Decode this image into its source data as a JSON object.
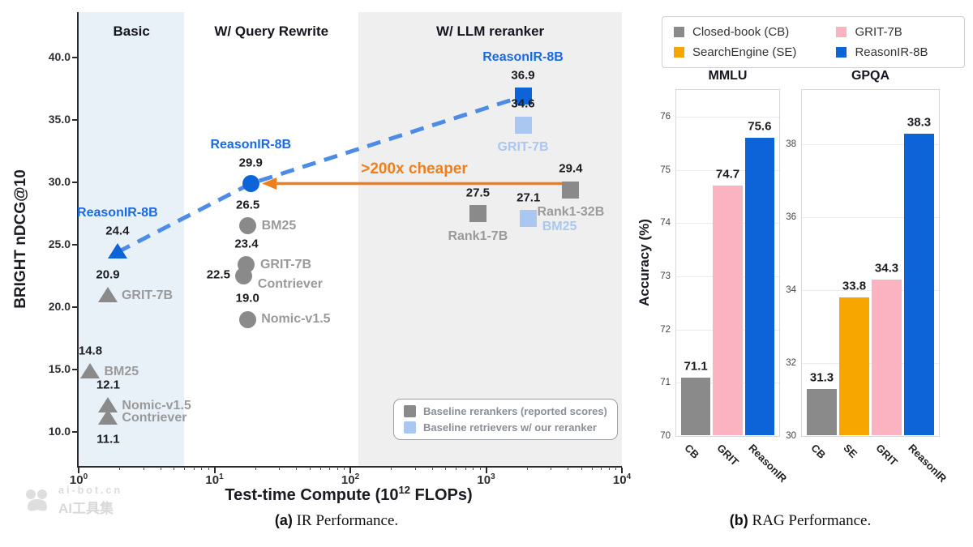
{
  "colors": {
    "blue": "#0d64d8",
    "blue_text": "#1a6ae0",
    "lightblue": "#a9c7f0",
    "gray": "#8a8a8a",
    "gray_text": "#9a9a9a",
    "dark_text": "#1b1b22",
    "pink": "#fbb3c1",
    "orange_bar": "#f7a600",
    "orange": "#ee7f1d",
    "trend": "#4d8ce6",
    "region_basic_bg": "#e9f1f8",
    "region_rewrite_bg": "#ffffff",
    "region_reranker_bg": "#efeff0"
  },
  "panel_a": {
    "caption_tag": "(a)",
    "caption_text": " IR Performance."
  },
  "panel_b": {
    "caption_tag": "(b)",
    "caption_text": " RAG Performance."
  },
  "watermark": {
    "site": "ai-bot.cn",
    "name": "AI工具集"
  },
  "chart_data": [
    {
      "id": "ir-performance",
      "type": "scatter",
      "x_axis": {
        "label_prefix": "Test-time Compute (10",
        "label_sup": "12",
        "label_suffix": " FLOPs)",
        "scale": "log",
        "ticks": [
          {
            "base": "10",
            "exp": "0"
          },
          {
            "base": "10",
            "exp": "1"
          },
          {
            "base": "10",
            "exp": "2"
          },
          {
            "base": "10",
            "exp": "3"
          },
          {
            "base": "10",
            "exp": "4"
          }
        ],
        "range_log10": [
          0,
          4
        ]
      },
      "y_axis": {
        "label": "BRIGHT nDCG@10",
        "ticks": [
          "10.0",
          "15.0",
          "20.0",
          "25.0",
          "30.0",
          "35.0",
          "40.0"
        ],
        "range": [
          7.4,
          43.6
        ]
      },
      "regions": [
        {
          "label": "Basic",
          "x_from": 1,
          "x_to": 6,
          "bg_key": "region_basic_bg"
        },
        {
          "label": "W/ Query Rewrite",
          "x_from": 6,
          "x_to": 115,
          "bg_key": "region_rewrite_bg"
        },
        {
          "label": "W/ LLM reranker",
          "x_from": 115,
          "x_to": 10000,
          "bg_key": "region_reranker_bg"
        }
      ],
      "points": [
        {
          "name": "BM25",
          "score": "14.8",
          "flops": 1.22,
          "marker": "triangle",
          "color": "gray",
          "value_pos": "above",
          "name_pos": "right",
          "name_color": "gray"
        },
        {
          "name": "Nomic-v1.5",
          "score": "12.1",
          "flops": 1.65,
          "marker": "triangle",
          "color": "gray",
          "value_pos": "above",
          "name_pos": "right",
          "name_color": "gray"
        },
        {
          "name": "Contriever",
          "score": "11.1",
          "flops": 1.65,
          "marker": "triangle",
          "color": "gray",
          "value_pos": "below",
          "name_pos": "right",
          "name_color": "gray"
        },
        {
          "name": "GRIT-7B",
          "score": "20.9",
          "flops": 1.64,
          "marker": "triangle",
          "color": "gray",
          "value_pos": "above",
          "name_pos": "right",
          "name_color": "gray"
        },
        {
          "name": "ReasonIR-8B",
          "score": "24.4",
          "flops": 1.93,
          "marker": "triangle",
          "color": "blue",
          "value_pos": "above",
          "name_pos": "above",
          "name_color": "blue"
        },
        {
          "name": "BM25",
          "score": "26.5",
          "flops": 17.6,
          "marker": "circle",
          "color": "gray",
          "value_pos": "above",
          "name_pos": "right",
          "name_color": "gray"
        },
        {
          "name": "GRIT-7B",
          "score": "23.4",
          "flops": 17.2,
          "marker": "circle",
          "color": "gray",
          "value_pos": "above",
          "name_pos": "right",
          "name_color": "gray"
        },
        {
          "name": "Contriever",
          "score": "22.5",
          "flops": 16.5,
          "marker": "circle",
          "color": "gray",
          "value_pos": "left",
          "name_pos": "right-below",
          "name_color": "gray"
        },
        {
          "name": "Nomic-v1.5",
          "score": "19.0",
          "flops": 17.5,
          "marker": "circle",
          "color": "gray",
          "value_pos": "above",
          "name_pos": "right",
          "name_color": "gray"
        },
        {
          "name": "ReasonIR-8B",
          "score": "29.9",
          "flops": 18.5,
          "marker": "circle",
          "color": "blue",
          "value_pos": "above",
          "name_pos": "above",
          "name_color": "blue"
        },
        {
          "name": "Rank1-7B",
          "score": "27.5",
          "flops": 870,
          "marker": "square",
          "color": "gray",
          "value_pos": "above",
          "name_pos": "below",
          "name_color": "gray"
        },
        {
          "name": "BM25",
          "score": "27.1",
          "flops": 2050,
          "marker": "square",
          "color": "lightblue",
          "value_pos": "above",
          "name_pos": "right-below",
          "name_color": "lightblue"
        },
        {
          "name": "Rank1-32B",
          "score": "29.4",
          "flops": 4200,
          "marker": "square",
          "color": "gray",
          "value_pos": "above",
          "name_pos": "below",
          "name_color": "gray"
        },
        {
          "name": "GRIT-7B",
          "score": "34.6",
          "flops": 1870,
          "marker": "square",
          "color": "lightblue",
          "value_pos": "above",
          "name_pos": "below",
          "name_color": "lightblue"
        },
        {
          "name": "ReasonIR-8B",
          "score": "36.9",
          "flops": 1870,
          "marker": "square",
          "color": "blue",
          "value_pos": "above",
          "name_pos": "above",
          "name_color": "blue"
        }
      ],
      "trend_point_indices": [
        4,
        9,
        14
      ],
      "annotation": {
        "text": ">200x cheaper"
      },
      "legend": [
        {
          "label": "Baseline rerankers (reported scores)",
          "color": "gray"
        },
        {
          "label": "Baseline retrievers w/ our reranker",
          "color": "lightblue"
        }
      ]
    },
    {
      "id": "rag-performance",
      "type": "bar",
      "ylabel": "Accuracy (%)",
      "legend": [
        {
          "label": "Closed-book (CB)",
          "color": "gray"
        },
        {
          "label": "GRIT-7B",
          "color": "pink"
        },
        {
          "label": "SearchEngine (SE)",
          "color": "orange_bar"
        },
        {
          "label": "ReasonIR-8B",
          "color": "blue"
        }
      ],
      "subplots": [
        {
          "title": "MMLU",
          "ylim": [
            70,
            76.5
          ],
          "yticks": [
            70,
            71,
            72,
            73,
            74,
            75,
            76
          ],
          "categories": [
            "CB",
            "GRIT",
            "ReasonIR"
          ],
          "values": [
            71.1,
            74.7,
            75.6
          ],
          "bar_colors": [
            "gray",
            "pink",
            "blue"
          ]
        },
        {
          "title": "GPQA",
          "ylim": [
            30,
            39.5
          ],
          "yticks": [
            30,
            32,
            34,
            36,
            38
          ],
          "categories": [
            "CB",
            "SE",
            "GRIT",
            "ReasonIR"
          ],
          "values": [
            31.3,
            33.8,
            34.3,
            38.3
          ],
          "bar_colors": [
            "gray",
            "orange_bar",
            "pink",
            "blue"
          ]
        }
      ]
    }
  ]
}
